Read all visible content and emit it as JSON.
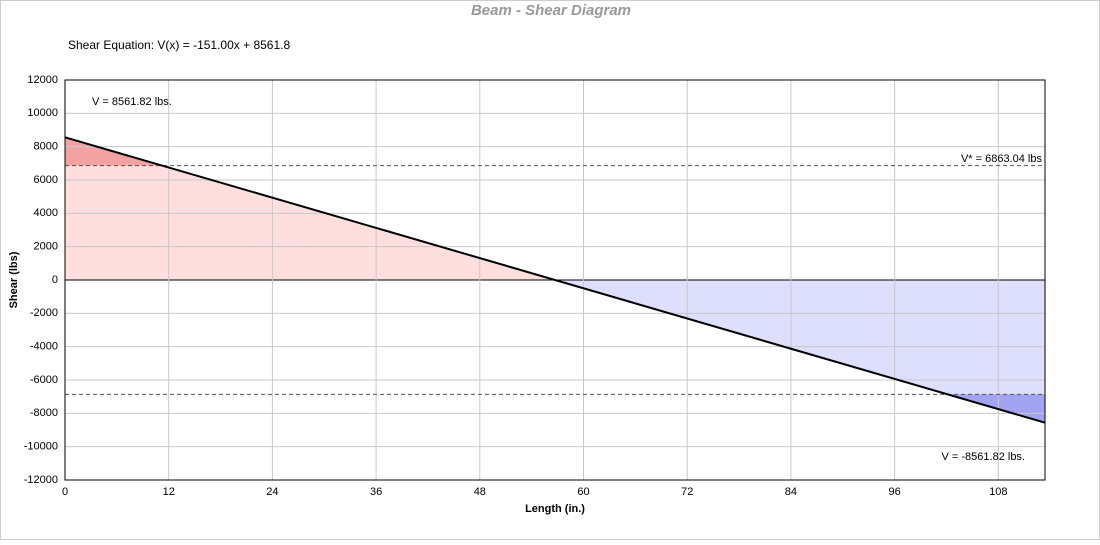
{
  "chart_data": {
    "type": "line",
    "title": "Beam - Shear Diagram",
    "subtitle": "Shear Equation:  V(x) = -151.00x + 8561.8",
    "x_label": "Length (in.)",
    "y_label": "Shear (lbs)",
    "x": [
      0,
      113.4
    ],
    "series": [
      {
        "values": [
          8561.82,
          -8561.82
        ],
        "color": "#000000"
      }
    ],
    "limit_lines": [
      6863.04,
      -6863.04
    ],
    "annotations": [
      "V = 8561.82 lbs.",
      "V* = 6863.04 lbs",
      "V = -8561.82 lbs."
    ],
    "xlim": [
      0,
      113.4
    ],
    "ylim": [
      -12000,
      12000
    ],
    "xticks": [
      0,
      12,
      24,
      36,
      48,
      60,
      72,
      84,
      96,
      108
    ],
    "yticks": [
      -12000,
      -10000,
      -8000,
      -6000,
      -4000,
      -2000,
      0,
      2000,
      4000,
      6000,
      8000,
      10000,
      12000
    ],
    "grid": true,
    "positive_fill": "#ffdede",
    "positive_over_fill": "#f4a3a3",
    "negative_fill": "#dedefd",
    "negative_over_fill": "#a3a3f4"
  }
}
